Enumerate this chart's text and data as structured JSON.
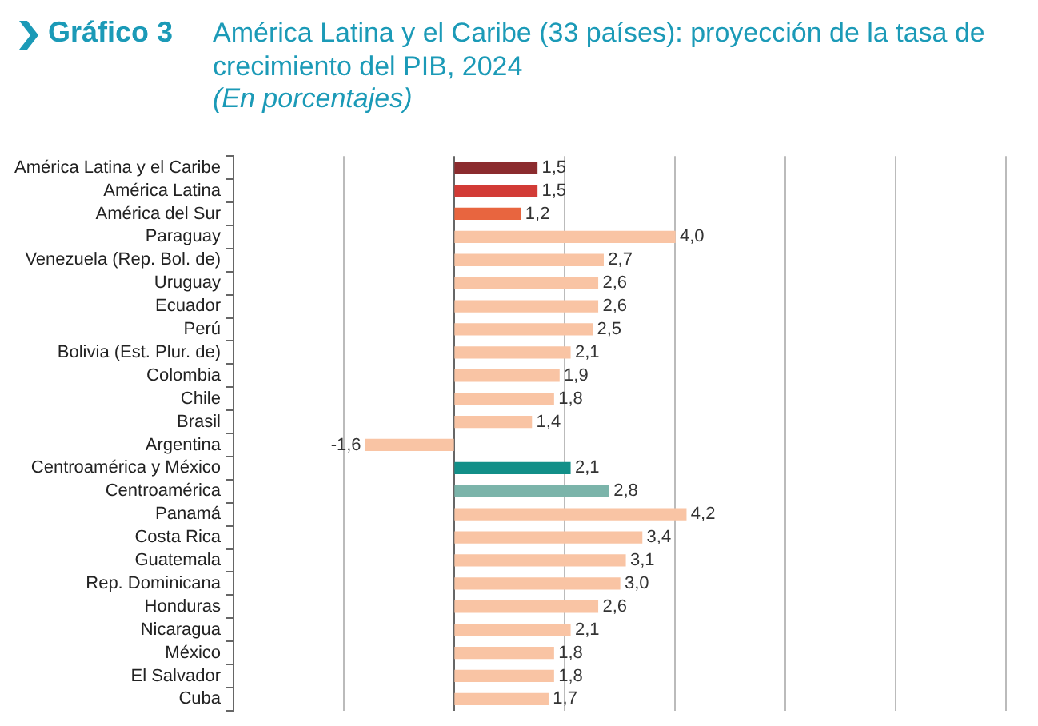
{
  "chart_data": {
    "type": "bar",
    "orientation": "horizontal",
    "title": "América Latina y el Caribe (33 países): proyección de la tasa de crecimiento del PIB, 2024",
    "subtitle": "(En porcentajes)",
    "annotations": [
      "Gráfico 3"
    ],
    "categories": [
      "América Latina y el Caribe",
      "América Latina",
      "América del Sur",
      "Paraguay",
      "Venezuela (Rep. Bol. de)",
      "Uruguay",
      "Ecuador",
      "Perú",
      "Bolivia (Est. Plur. de)",
      "Colombia",
      "Chile",
      "Brasil",
      "Argentina",
      "Centroamérica y México",
      "Centroamérica",
      "Panamá",
      "Costa Rica",
      "Guatemala",
      "Rep. Dominicana",
      "Honduras",
      "Nicaragua",
      "México",
      "El Salvador",
      "Cuba"
    ],
    "values": [
      1.5,
      1.5,
      1.2,
      4.0,
      2.7,
      2.6,
      2.6,
      2.5,
      2.1,
      1.9,
      1.8,
      1.4,
      -1.6,
      2.1,
      2.8,
      4.2,
      3.4,
      3.1,
      3.0,
      2.6,
      2.1,
      1.8,
      1.8,
      1.7
    ],
    "value_labels": [
      "1,5",
      "1,5",
      "1,2",
      "4,0",
      "2,7",
      "2,6",
      "2,6",
      "2,5",
      "2,1",
      "1,9",
      "1,8",
      "1,4",
      "-1,6",
      "2,1",
      "2,8",
      "4,2",
      "3,4",
      "3,1",
      "3,0",
      "2,6",
      "2,1",
      "1,8",
      "1,8",
      "1,7"
    ],
    "colors": [
      "#8b2b2e",
      "#d23b36",
      "#e8653f",
      "#f9c4a4",
      "#f9c4a4",
      "#f9c4a4",
      "#f9c4a4",
      "#f9c4a4",
      "#f9c4a4",
      "#f9c4a4",
      "#f9c4a4",
      "#f9c4a4",
      "#f9c4a4",
      "#128f88",
      "#7bb4aa",
      "#f9c4a4",
      "#f9c4a4",
      "#f9c4a4",
      "#f9c4a4",
      "#f9c4a4",
      "#f9c4a4",
      "#f9c4a4",
      "#f9c4a4",
      "#f9c4a4"
    ],
    "xlim": [
      -4,
      10
    ],
    "xticks": [
      {
        "value": -4,
        "label": null
      },
      {
        "value": -2,
        "label": null
      },
      {
        "value": 0,
        "label": null
      },
      {
        "value": 2,
        "label": null
      },
      {
        "value": 4,
        "label": null
      },
      {
        "value": 6,
        "label": null
      },
      {
        "value": 8,
        "label": null
      },
      {
        "value": 10,
        "label": null
      }
    ],
    "grid": "x",
    "tick_labels": "y"
  }
}
